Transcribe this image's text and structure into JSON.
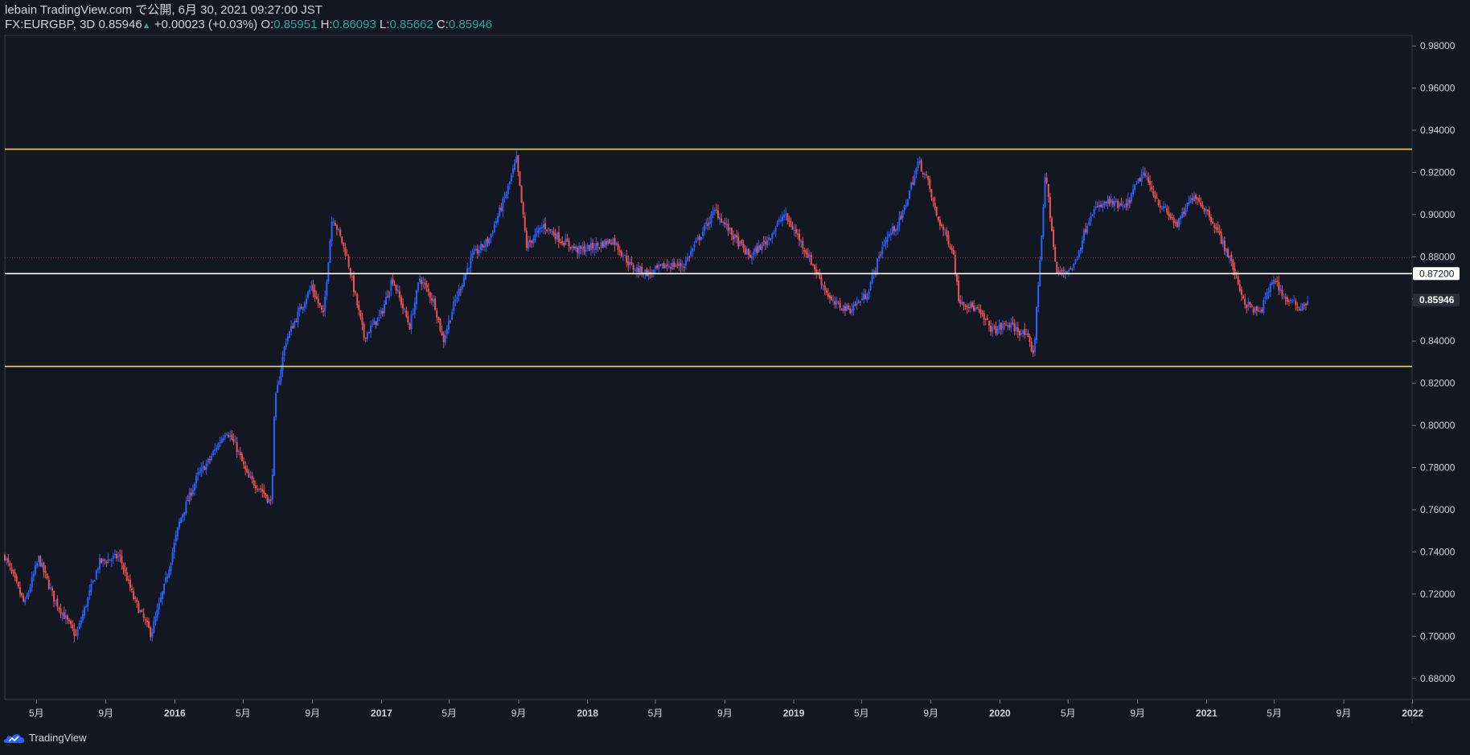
{
  "header": {
    "published": "lebain TradingView.com で公開, 6月 30, 2021 09:27:00 JST",
    "symbol": "FX:EURGBP, 3D",
    "last": "0.85946",
    "change": "+0.00023 (+0.03%)",
    "o_label": "O:",
    "o": "0.85951",
    "h_label": "H:",
    "h": "0.86093",
    "l_label": "L:",
    "l": "0.85662",
    "c_label": "C:",
    "c": "0.85946"
  },
  "footer": {
    "brand": "TradingView"
  },
  "colors": {
    "background": "#131722",
    "up": "#2962ff",
    "down": "#ef5350",
    "level": "#f2d048",
    "marker": "#ffffff",
    "text": "#d1d4dc",
    "accent": "#26a69a"
  },
  "chart_data": {
    "type": "candlestick",
    "title": "",
    "ylim": [
      0.67,
      0.985
    ],
    "y_ticks": [
      "0.98000",
      "0.96000",
      "0.94000",
      "0.92000",
      "0.90000",
      "0.88000",
      "0.86000",
      "0.84000",
      "0.82000",
      "0.80000",
      "0.78000",
      "0.76000",
      "0.74000",
      "0.72000",
      "0.70000",
      "0.68000"
    ],
    "x_ticks": [
      "5月",
      "9月",
      "2016",
      "5月",
      "9月",
      "2017",
      "5月",
      "9月",
      "2018",
      "5月",
      "9月",
      "2019",
      "5月",
      "9月",
      "2020",
      "5月",
      "9月",
      "2021",
      "5月",
      "9月",
      "2022"
    ],
    "x_range": [
      "2015-03-06",
      "2021-12-31"
    ],
    "x_tick_dates": [
      "2015-05-01",
      "2015-09-01",
      "2016-01-01",
      "2016-05-01",
      "2016-09-01",
      "2017-01-01",
      "2017-05-01",
      "2017-09-01",
      "2018-01-01",
      "2018-05-01",
      "2018-09-01",
      "2019-01-01",
      "2019-05-01",
      "2019-09-01",
      "2020-01-01",
      "2020-05-01",
      "2020-09-01",
      "2021-01-01",
      "2021-05-01",
      "2021-09-01",
      "2022-01-01"
    ],
    "price_path": [
      [
        "2015-03-06",
        0.738
      ],
      [
        "2015-04-10",
        0.715
      ],
      [
        "2015-05-05",
        0.737
      ],
      [
        "2015-06-01",
        0.718
      ],
      [
        "2015-07-10",
        0.7
      ],
      [
        "2015-08-20",
        0.735
      ],
      [
        "2015-09-25",
        0.738
      ],
      [
        "2015-10-20",
        0.718
      ],
      [
        "2015-11-20",
        0.701
      ],
      [
        "2015-12-15",
        0.725
      ],
      [
        "2016-01-10",
        0.755
      ],
      [
        "2016-02-10",
        0.776
      ],
      [
        "2016-03-01",
        0.783
      ],
      [
        "2016-04-01",
        0.798
      ],
      [
        "2016-04-20",
        0.789
      ],
      [
        "2016-05-10",
        0.775
      ],
      [
        "2016-06-01",
        0.77
      ],
      [
        "2016-06-20",
        0.763
      ],
      [
        "2016-06-26",
        0.81
      ],
      [
        "2016-07-15",
        0.84
      ],
      [
        "2016-08-10",
        0.855
      ],
      [
        "2016-08-30",
        0.866
      ],
      [
        "2016-09-20",
        0.852
      ],
      [
        "2016-10-06",
        0.9
      ],
      [
        "2016-11-01",
        0.88
      ],
      [
        "2016-12-01",
        0.842
      ],
      [
        "2017-01-01",
        0.853
      ],
      [
        "2017-01-20",
        0.87
      ],
      [
        "2017-02-20",
        0.847
      ],
      [
        "2017-03-10",
        0.87
      ],
      [
        "2017-04-05",
        0.858
      ],
      [
        "2017-04-20",
        0.84
      ],
      [
        "2017-05-10",
        0.858
      ],
      [
        "2017-06-10",
        0.88
      ],
      [
        "2017-07-10",
        0.888
      ],
      [
        "2017-08-10",
        0.91
      ],
      [
        "2017-08-28",
        0.926
      ],
      [
        "2017-09-15",
        0.885
      ],
      [
        "2017-10-15",
        0.895
      ],
      [
        "2017-11-15",
        0.888
      ],
      [
        "2017-12-15",
        0.883
      ],
      [
        "2018-01-15",
        0.885
      ],
      [
        "2018-02-15",
        0.888
      ],
      [
        "2018-03-20",
        0.875
      ],
      [
        "2018-04-20",
        0.872
      ],
      [
        "2018-05-20",
        0.876
      ],
      [
        "2018-06-20",
        0.876
      ],
      [
        "2018-07-15",
        0.888
      ],
      [
        "2018-08-15",
        0.902
      ],
      [
        "2018-09-15",
        0.89
      ],
      [
        "2018-10-15",
        0.88
      ],
      [
        "2018-11-15",
        0.888
      ],
      [
        "2018-12-15",
        0.9
      ],
      [
        "2019-01-10",
        0.889
      ],
      [
        "2019-02-10",
        0.873
      ],
      [
        "2019-03-10",
        0.858
      ],
      [
        "2019-04-10",
        0.855
      ],
      [
        "2019-05-10",
        0.862
      ],
      [
        "2019-06-10",
        0.887
      ],
      [
        "2019-07-10",
        0.898
      ],
      [
        "2019-08-10",
        0.925
      ],
      [
        "2019-08-25",
        0.917
      ],
      [
        "2019-09-10",
        0.9
      ],
      [
        "2019-10-10",
        0.883
      ],
      [
        "2019-10-20",
        0.86
      ],
      [
        "2019-11-20",
        0.855
      ],
      [
        "2019-12-20",
        0.845
      ],
      [
        "2020-01-15",
        0.848
      ],
      [
        "2020-02-15",
        0.843
      ],
      [
        "2020-03-01",
        0.834
      ],
      [
        "2020-03-10",
        0.871
      ],
      [
        "2020-03-22",
        0.92
      ],
      [
        "2020-04-10",
        0.872
      ],
      [
        "2020-05-10",
        0.875
      ],
      [
        "2020-06-10",
        0.901
      ],
      [
        "2020-07-10",
        0.906
      ],
      [
        "2020-08-10",
        0.903
      ],
      [
        "2020-09-10",
        0.92
      ],
      [
        "2020-10-10",
        0.905
      ],
      [
        "2020-11-10",
        0.895
      ],
      [
        "2020-12-10",
        0.91
      ],
      [
        "2021-01-10",
        0.898
      ],
      [
        "2021-02-10",
        0.88
      ],
      [
        "2021-03-10",
        0.858
      ],
      [
        "2021-04-05",
        0.853
      ],
      [
        "2021-04-30",
        0.87
      ],
      [
        "2021-05-20",
        0.86
      ],
      [
        "2021-06-15",
        0.856
      ],
      [
        "2021-06-30",
        0.8595
      ]
    ],
    "horizontal_lines": [
      {
        "value": 0.931,
        "color": "#f2d048"
      },
      {
        "value": 0.872,
        "color": "#ffffff"
      },
      {
        "value": 0.828,
        "color": "#f2d048"
      }
    ],
    "price_labels": [
      {
        "value": 0.872,
        "text": "0.87200"
      },
      {
        "value": 0.85946,
        "text": "0.85946"
      }
    ],
    "grid": false
  }
}
